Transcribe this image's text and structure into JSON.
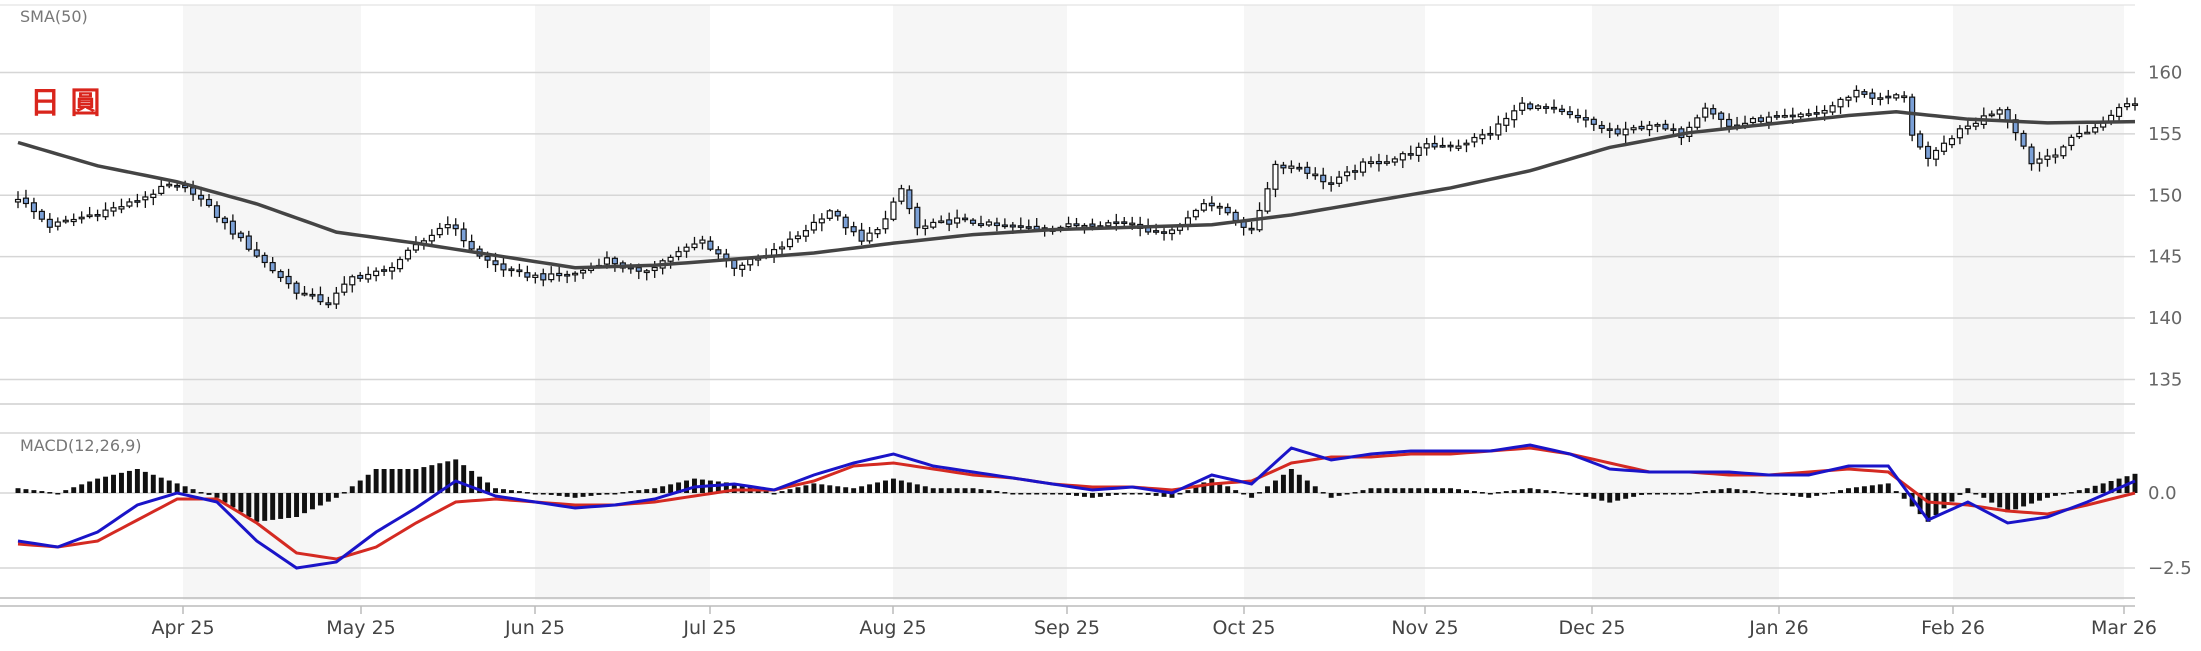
{
  "chart_data": [
    {
      "type": "candlestick",
      "title": "日 圓",
      "indicator_label": "SMA(50)",
      "y_ticks": [
        135,
        140,
        145,
        150,
        155,
        160
      ],
      "ylim": [
        133,
        165.5
      ],
      "x_ticks": [
        "Apr 25",
        "May 25",
        "Jun 25",
        "Jul 25",
        "Aug 25",
        "Sep 25",
        "Oct 25",
        "Nov 25",
        "Dec 25",
        "Jan 26",
        "Feb 26",
        "Mar 26"
      ],
      "grid": true,
      "shaded_alternate_months": true,
      "close_anchors": [
        [
          0,
          149.8
        ],
        [
          4,
          147.5
        ],
        [
          8,
          148.2
        ],
        [
          14,
          149.3
        ],
        [
          19,
          150.8
        ],
        [
          22,
          150.3
        ],
        [
          27,
          147.0
        ],
        [
          31,
          144.5
        ],
        [
          35,
          142.2
        ],
        [
          39,
          141.2
        ],
        [
          42,
          143.3
        ],
        [
          46,
          143.8
        ],
        [
          50,
          145.8
        ],
        [
          54,
          147.8
        ],
        [
          58,
          145.0
        ],
        [
          62,
          143.7
        ],
        [
          66,
          143.3
        ],
        [
          70,
          143.6
        ],
        [
          74,
          144.8
        ],
        [
          78,
          143.6
        ],
        [
          82,
          145.0
        ],
        [
          86,
          146.3
        ],
        [
          90,
          144.2
        ],
        [
          94,
          145.0
        ],
        [
          98,
          146.7
        ],
        [
          102,
          148.8
        ],
        [
          106,
          146.2
        ],
        [
          109,
          148.0
        ],
        [
          111,
          150.5
        ],
        [
          113,
          147.3
        ],
        [
          118,
          148.0
        ],
        [
          124,
          147.4
        ],
        [
          129,
          147.3
        ],
        [
          135,
          147.7
        ],
        [
          140,
          147.8
        ],
        [
          143,
          146.9
        ],
        [
          146,
          147.5
        ],
        [
          149,
          149.5
        ],
        [
          152,
          148.6
        ],
        [
          155,
          147.0
        ],
        [
          158,
          152.5
        ],
        [
          161,
          152.3
        ],
        [
          165,
          150.9
        ],
        [
          169,
          152.5
        ],
        [
          173,
          153.0
        ],
        [
          177,
          154.0
        ],
        [
          181,
          154.1
        ],
        [
          185,
          155.1
        ],
        [
          189,
          157.4
        ],
        [
          193,
          156.9
        ],
        [
          197,
          156.0
        ],
        [
          201,
          155.0
        ],
        [
          205,
          155.8
        ],
        [
          209,
          154.9
        ],
        [
          212,
          157.3
        ],
        [
          215,
          155.6
        ],
        [
          219,
          156.2
        ],
        [
          223,
          156.3
        ],
        [
          227,
          156.9
        ],
        [
          231,
          158.5
        ],
        [
          234,
          157.8
        ],
        [
          237,
          158.2
        ],
        [
          238,
          155.0
        ],
        [
          240,
          152.8
        ],
        [
          243,
          154.8
        ],
        [
          246,
          156.0
        ],
        [
          249,
          157.1
        ],
        [
          251,
          155.3
        ],
        [
          253,
          152.7
        ],
        [
          256,
          153.5
        ],
        [
          259,
          155.0
        ],
        [
          262,
          155.8
        ],
        [
          264,
          157.3
        ],
        [
          266,
          157.4
        ]
      ],
      "sma_anchors": [
        [
          0,
          154.3
        ],
        [
          10,
          152.4
        ],
        [
          20,
          151.1
        ],
        [
          30,
          149.3
        ],
        [
          40,
          147.0
        ],
        [
          50,
          146.1
        ],
        [
          60,
          145.1
        ],
        [
          70,
          144.1
        ],
        [
          80,
          144.3
        ],
        [
          90,
          144.8
        ],
        [
          100,
          145.3
        ],
        [
          110,
          146.1
        ],
        [
          120,
          146.8
        ],
        [
          130,
          147.2
        ],
        [
          140,
          147.4
        ],
        [
          150,
          147.6
        ],
        [
          160,
          148.4
        ],
        [
          170,
          149.5
        ],
        [
          180,
          150.6
        ],
        [
          190,
          152.0
        ],
        [
          200,
          153.9
        ],
        [
          210,
          155.1
        ],
        [
          220,
          155.8
        ],
        [
          230,
          156.5
        ],
        [
          236,
          156.8
        ],
        [
          245,
          156.2
        ],
        [
          255,
          155.9
        ],
        [
          266,
          156.0
        ]
      ]
    },
    {
      "type": "macd",
      "indicator_label": "MACD(12,26,9)",
      "y_ticks": [
        -2.5,
        0.0
      ],
      "y_tick_labels": [
        "−2.5",
        "0.0"
      ],
      "ylim": [
        -3.5,
        2.0
      ],
      "series": [
        {
          "color": "#1a14c8",
          "anchors": [
            [
              0,
              -1.6
            ],
            [
              5,
              -1.8
            ],
            [
              10,
              -1.3
            ],
            [
              15,
              -0.4
            ],
            [
              20,
              0.0
            ],
            [
              25,
              -0.3
            ],
            [
              30,
              -1.6
            ],
            [
              35,
              -2.5
            ],
            [
              40,
              -2.3
            ],
            [
              45,
              -1.3
            ],
            [
              50,
              -0.5
            ],
            [
              55,
              0.4
            ],
            [
              60,
              -0.1
            ],
            [
              65,
              -0.3
            ],
            [
              70,
              -0.5
            ],
            [
              75,
              -0.4
            ],
            [
              80,
              -0.2
            ],
            [
              85,
              0.2
            ],
            [
              90,
              0.3
            ],
            [
              95,
              0.1
            ],
            [
              100,
              0.6
            ],
            [
              105,
              1.0
            ],
            [
              110,
              1.3
            ],
            [
              115,
              0.9
            ],
            [
              120,
              0.7
            ],
            [
              125,
              0.5
            ],
            [
              130,
              0.3
            ],
            [
              135,
              0.1
            ],
            [
              140,
              0.2
            ],
            [
              145,
              0.0
            ],
            [
              150,
              0.6
            ],
            [
              155,
              0.3
            ],
            [
              160,
              1.5
            ],
            [
              165,
              1.1
            ],
            [
              170,
              1.3
            ],
            [
              175,
              1.4
            ],
            [
              180,
              1.4
            ],
            [
              185,
              1.4
            ],
            [
              190,
              1.6
            ],
            [
              195,
              1.3
            ],
            [
              200,
              0.8
            ],
            [
              205,
              0.7
            ],
            [
              210,
              0.7
            ],
            [
              215,
              0.7
            ],
            [
              220,
              0.6
            ],
            [
              225,
              0.6
            ],
            [
              230,
              0.9
            ],
            [
              235,
              0.9
            ],
            [
              240,
              -0.9
            ],
            [
              245,
              -0.3
            ],
            [
              250,
              -1.0
            ],
            [
              255,
              -0.8
            ],
            [
              260,
              -0.3
            ],
            [
              266,
              0.4
            ]
          ]
        },
        {
          "color": "#d42a22",
          "anchors": [
            [
              0,
              -1.7
            ],
            [
              5,
              -1.8
            ],
            [
              10,
              -1.6
            ],
            [
              15,
              -0.9
            ],
            [
              20,
              -0.2
            ],
            [
              25,
              -0.2
            ],
            [
              30,
              -1.0
            ],
            [
              35,
              -2.0
            ],
            [
              40,
              -2.2
            ],
            [
              45,
              -1.8
            ],
            [
              50,
              -1.0
            ],
            [
              55,
              -0.3
            ],
            [
              60,
              -0.2
            ],
            [
              65,
              -0.3
            ],
            [
              70,
              -0.4
            ],
            [
              75,
              -0.4
            ],
            [
              80,
              -0.3
            ],
            [
              85,
              -0.1
            ],
            [
              90,
              0.1
            ],
            [
              95,
              0.1
            ],
            [
              100,
              0.4
            ],
            [
              105,
              0.9
            ],
            [
              110,
              1.0
            ],
            [
              115,
              0.8
            ],
            [
              120,
              0.6
            ],
            [
              125,
              0.5
            ],
            [
              130,
              0.3
            ],
            [
              135,
              0.2
            ],
            [
              140,
              0.2
            ],
            [
              145,
              0.1
            ],
            [
              150,
              0.3
            ],
            [
              155,
              0.4
            ],
            [
              160,
              1.0
            ],
            [
              165,
              1.2
            ],
            [
              170,
              1.2
            ],
            [
              175,
              1.3
            ],
            [
              180,
              1.3
            ],
            [
              185,
              1.4
            ],
            [
              190,
              1.5
            ],
            [
              195,
              1.3
            ],
            [
              200,
              1.0
            ],
            [
              205,
              0.7
            ],
            [
              210,
              0.7
            ],
            [
              215,
              0.6
            ],
            [
              220,
              0.6
            ],
            [
              225,
              0.7
            ],
            [
              230,
              0.8
            ],
            [
              235,
              0.7
            ],
            [
              240,
              -0.3
            ],
            [
              245,
              -0.4
            ],
            [
              250,
              -0.6
            ],
            [
              255,
              -0.7
            ],
            [
              260,
              -0.4
            ],
            [
              266,
              0.0
            ]
          ]
        }
      ]
    }
  ]
}
